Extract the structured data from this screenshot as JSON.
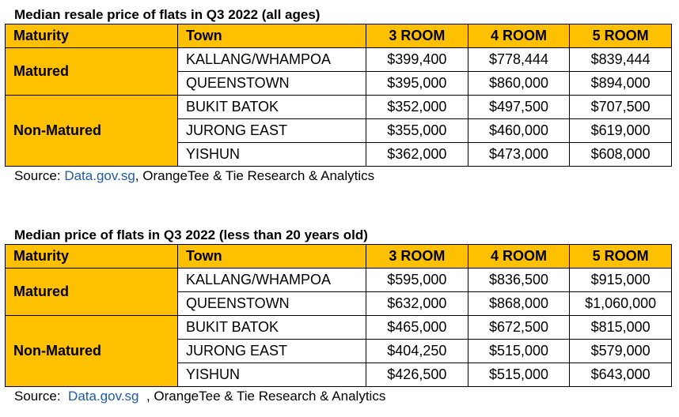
{
  "tables": [
    {
      "title": "Median resale price of flats in Q3 2022 (all ages)",
      "headers": {
        "maturity": "Maturity",
        "town": "Town",
        "room3": "3 ROOM",
        "room4": "4 ROOM",
        "room5": "5 ROOM"
      },
      "groups": [
        {
          "label": "Matured",
          "rows": [
            {
              "town": "KALLANG/WHAMPOA",
              "room3": "$399,400",
              "room4": "$778,444",
              "room5": "$839,444"
            },
            {
              "town": "QUEENSTOWN",
              "room3": "$395,000",
              "room4": "$860,000",
              "room5": "$894,000"
            }
          ]
        },
        {
          "label": "Non-Matured",
          "rows": [
            {
              "town": "BUKIT BATOK",
              "room3": "$352,000",
              "room4": "$497,500",
              "room5": "$707,500"
            },
            {
              "town": "JURONG EAST",
              "room3": "$355,000",
              "room4": "$460,000",
              "room5": "$619,000"
            },
            {
              "town": "YISHUN",
              "room3": "$362,000",
              "room4": "$473,000",
              "room5": "$608,000"
            }
          ]
        }
      ],
      "source": {
        "prefix": "Source: ",
        "link": "Data.gov.sg",
        "suffix": ", OrangeTee & Tie Research & Analytics"
      }
    },
    {
      "title": "Median price of flats in Q3 2022 (less than 20 years old)",
      "headers": {
        "maturity": "Maturity",
        "town": "Town",
        "room3": "3 ROOM",
        "room4": "4 ROOM",
        "room5": "5 ROOM"
      },
      "groups": [
        {
          "label": "Matured",
          "rows": [
            {
              "town": "KALLANG/WHAMPOA",
              "room3": "$595,000",
              "room4": "$836,500",
              "room5": "$915,000"
            },
            {
              "town": "QUEENSTOWN",
              "room3": "$632,000",
              "room4": "$868,000",
              "room5": "$1,060,000"
            }
          ]
        },
        {
          "label": "Non-Matured",
          "rows": [
            {
              "town": "BUKIT BATOK",
              "room3": "$465,000",
              "room4": "$672,500",
              "room5": "$815,000"
            },
            {
              "town": "JURONG EAST",
              "room3": "$404,250",
              "room4": "$515,000",
              "room5": "$579,000"
            },
            {
              "town": "YISHUN",
              "room3": "$426,500",
              "room4": "$515,000",
              "room5": "$643,000"
            }
          ]
        }
      ],
      "source": {
        "prefix": "Source:  ",
        "link": "Data.gov.sg",
        "suffix": "  , OrangeTee & Tie Research & Analytics"
      }
    }
  ]
}
